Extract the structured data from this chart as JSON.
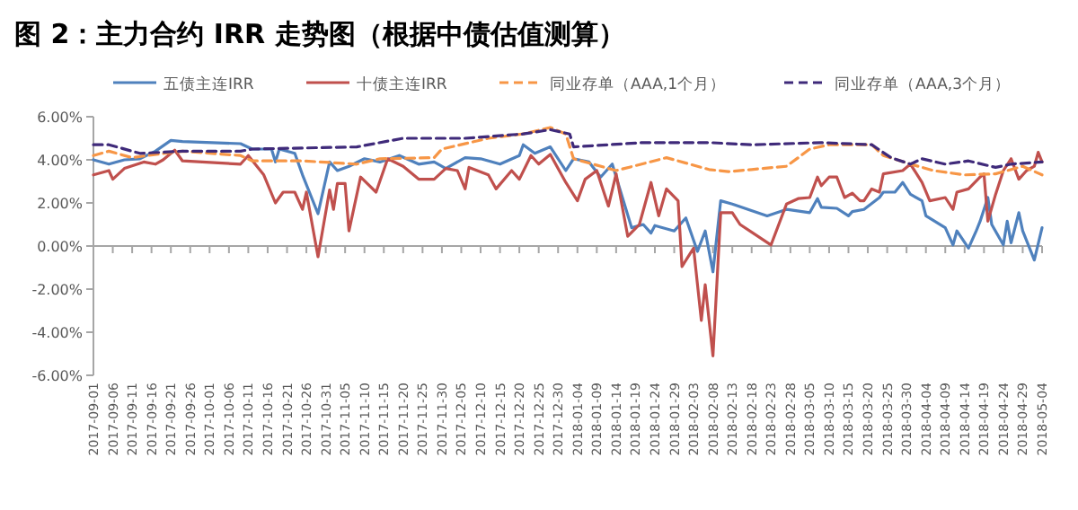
{
  "chart_data": {
    "type": "line",
    "title": "图 2：主力合约 IRR 走势图（根据中债估值测算）",
    "legend": "top",
    "xlim": [
      "2017-09-01",
      "2018-05-04"
    ],
    "xticks": [
      "2017-09-01",
      "2017-09-06",
      "2017-09-11",
      "2017-09-16",
      "2017-09-21",
      "2017-09-26",
      "2017-10-01",
      "2017-10-06",
      "2017-10-11",
      "2017-10-16",
      "2017-10-21",
      "2017-10-26",
      "2017-10-31",
      "2017-11-05",
      "2017-11-10",
      "2017-11-15",
      "2017-11-20",
      "2017-11-25",
      "2017-11-30",
      "2017-12-05",
      "2017-12-10",
      "2017-12-15",
      "2017-12-20",
      "2017-12-25",
      "2017-12-30",
      "2018-01-04",
      "2018-01-09",
      "2018-01-14",
      "2018-01-19",
      "2018-01-24",
      "2018-01-29",
      "2018-02-03",
      "2018-02-08",
      "2018-02-13",
      "2018-02-18",
      "2018-02-23",
      "2018-02-28",
      "2018-03-05",
      "2018-03-10",
      "2018-03-15",
      "2018-03-20",
      "2018-03-25",
      "2018-03-30",
      "2018-04-04",
      "2018-04-09",
      "2018-04-14",
      "2018-04-19",
      "2018-04-24",
      "2018-04-29",
      "2018-05-04"
    ],
    "ylim": [
      -6,
      6
    ],
    "yticks": [
      {
        "value": -6,
        "label": "-6.00%"
      },
      {
        "value": -4,
        "label": "-4.00%"
      },
      {
        "value": -2,
        "label": "-2.00%"
      },
      {
        "value": 0,
        "label": "0.00%"
      },
      {
        "value": 2,
        "label": "2.00%"
      },
      {
        "value": 4,
        "label": "4.00%"
      },
      {
        "value": 6,
        "label": "6.00%"
      }
    ],
    "series": [
      {
        "name": "五债主连IRR",
        "color": "#4f81bd",
        "line_style": "solid",
        "x": [
          "2017-09-01",
          "2017-09-05",
          "2017-09-09",
          "2017-09-13",
          "2017-09-17",
          "2017-09-21",
          "2017-09-24",
          "2017-10-09",
          "2017-10-12",
          "2017-10-17",
          "2017-10-18",
          "2017-10-19",
          "2017-10-23",
          "2017-10-25",
          "2017-10-29",
          "2017-11-01",
          "2017-11-03",
          "2017-11-06",
          "2017-11-10",
          "2017-11-14",
          "2017-11-19",
          "2017-11-24",
          "2017-11-28",
          "2017-12-01",
          "2017-12-06",
          "2017-12-10",
          "2017-12-15",
          "2017-12-20",
          "2017-12-21",
          "2017-12-24",
          "2017-12-28",
          "2018-01-01",
          "2018-01-03",
          "2018-01-07",
          "2018-01-10",
          "2018-01-13",
          "2018-01-18",
          "2018-01-21",
          "2018-01-23",
          "2018-01-24",
          "2018-01-29",
          "2018-02-01",
          "2018-02-04",
          "2018-02-06",
          "2018-02-08",
          "2018-02-10",
          "2018-02-13",
          "2018-02-22",
          "2018-02-27",
          "2018-03-05",
          "2018-03-07",
          "2018-03-08",
          "2018-03-12",
          "2018-03-15",
          "2018-03-16",
          "2018-03-19",
          "2018-03-23",
          "2018-03-24",
          "2018-03-27",
          "2018-03-29",
          "2018-03-31",
          "2018-04-03",
          "2018-04-04",
          "2018-04-09",
          "2018-04-11",
          "2018-04-12",
          "2018-04-15",
          "2018-04-17",
          "2018-04-18",
          "2018-04-20",
          "2018-04-21",
          "2018-04-24",
          "2018-04-25",
          "2018-04-26",
          "2018-04-28",
          "2018-04-29",
          "2018-05-02",
          "2018-05-04"
        ],
        "values": [
          4.0,
          3.8,
          4.0,
          4.05,
          4.4,
          4.9,
          4.85,
          4.75,
          4.5,
          4.5,
          3.9,
          4.5,
          4.3,
          3.3,
          1.5,
          3.9,
          3.5,
          3.7,
          4.05,
          3.9,
          4.2,
          3.8,
          3.9,
          3.6,
          4.1,
          4.05,
          3.8,
          4.2,
          4.7,
          4.3,
          4.6,
          3.5,
          4.05,
          3.9,
          3.2,
          3.8,
          0.85,
          1.0,
          0.6,
          0.95,
          0.7,
          1.3,
          -0.25,
          0.7,
          -1.2,
          2.1,
          1.95,
          1.4,
          1.7,
          1.55,
          2.2,
          1.8,
          1.75,
          1.4,
          1.6,
          1.7,
          2.25,
          2.5,
          2.5,
          2.95,
          2.4,
          2.1,
          1.4,
          0.85,
          0.05,
          0.7,
          -0.1,
          0.7,
          1.15,
          2.25,
          1.0,
          0.05,
          1.15,
          0.15,
          1.55,
          0.7,
          -0.65,
          0.85
        ]
      },
      {
        "name": "十债主连IRR",
        "color": "#c0504d",
        "line_style": "solid",
        "x": [
          "2017-09-01",
          "2017-09-05",
          "2017-09-06",
          "2017-09-09",
          "2017-09-14",
          "2017-09-17",
          "2017-09-19",
          "2017-09-22",
          "2017-09-24",
          "2017-10-09",
          "2017-10-11",
          "2017-10-15",
          "2017-10-18",
          "2017-10-20",
          "2017-10-23",
          "2017-10-25",
          "2017-10-26",
          "2017-10-29",
          "2017-11-01",
          "2017-11-02",
          "2017-11-03",
          "2017-11-05",
          "2017-11-06",
          "2017-11-09",
          "2017-11-13",
          "2017-11-16",
          "2017-11-20",
          "2017-11-24",
          "2017-11-28",
          "2017-12-01",
          "2017-12-04",
          "2017-12-06",
          "2017-12-07",
          "2017-12-12",
          "2017-12-14",
          "2017-12-18",
          "2017-12-20",
          "2017-12-23",
          "2017-12-25",
          "2017-12-28",
          "2018-01-01",
          "2018-01-04",
          "2018-01-06",
          "2018-01-09",
          "2018-01-12",
          "2018-01-14",
          "2018-01-17",
          "2018-01-20",
          "2018-01-23",
          "2018-01-25",
          "2018-01-27",
          "2018-01-30",
          "2018-01-31",
          "2018-02-03",
          "2018-02-05",
          "2018-02-06",
          "2018-02-08",
          "2018-02-10",
          "2018-02-13",
          "2018-02-15",
          "2018-02-23",
          "2018-02-27",
          "2018-03-02",
          "2018-03-05",
          "2018-03-07",
          "2018-03-08",
          "2018-03-10",
          "2018-03-12",
          "2018-03-14",
          "2018-03-16",
          "2018-03-18",
          "2018-03-19",
          "2018-03-21",
          "2018-03-23",
          "2018-03-24",
          "2018-03-29",
          "2018-03-31",
          "2018-04-03",
          "2018-04-05",
          "2018-04-09",
          "2018-04-11",
          "2018-04-12",
          "2018-04-15",
          "2018-04-18",
          "2018-04-19",
          "2018-04-20",
          "2018-04-22",
          "2018-04-24",
          "2018-04-26",
          "2018-04-28",
          "2018-04-30",
          "2018-05-02",
          "2018-05-03",
          "2018-05-04"
        ],
        "values": [
          3.3,
          3.5,
          3.1,
          3.6,
          3.9,
          3.8,
          4.0,
          4.45,
          3.95,
          3.8,
          4.2,
          3.3,
          2.0,
          2.5,
          2.5,
          1.7,
          2.5,
          -0.5,
          2.6,
          1.7,
          2.9,
          2.9,
          0.7,
          3.2,
          2.5,
          4.05,
          3.7,
          3.1,
          3.1,
          3.6,
          3.5,
          2.65,
          3.65,
          3.3,
          2.65,
          3.5,
          3.1,
          4.2,
          3.8,
          4.25,
          2.95,
          2.1,
          3.1,
          3.5,
          1.85,
          3.35,
          0.45,
          1.0,
          2.95,
          1.4,
          2.65,
          2.1,
          -0.95,
          -0.1,
          -3.45,
          -1.8,
          -5.1,
          1.55,
          1.55,
          1.0,
          0.05,
          1.95,
          2.2,
          2.25,
          3.2,
          2.8,
          3.2,
          3.2,
          2.25,
          2.45,
          2.1,
          2.1,
          2.65,
          2.5,
          3.35,
          3.5,
          3.8,
          2.95,
          2.1,
          2.25,
          1.7,
          2.5,
          2.65,
          3.2,
          3.35,
          1.15,
          2.4,
          3.5,
          4.05,
          3.1,
          3.5,
          3.7,
          4.35,
          3.9
        ]
      },
      {
        "name": "同业存单（AAA,1个月）",
        "color": "#f79646",
        "line_style": "dashed",
        "x": [
          "2017-09-01",
          "2017-09-05",
          "2017-09-11",
          "2017-09-15",
          "2017-09-24",
          "2017-10-09",
          "2017-10-12",
          "2017-10-25",
          "2017-11-08",
          "2017-11-14",
          "2017-11-28",
          "2017-11-30",
          "2017-12-12",
          "2017-12-21",
          "2017-12-28",
          "2018-01-01",
          "2018-01-03",
          "2018-01-14",
          "2018-01-27",
          "2018-02-07",
          "2018-02-12",
          "2018-02-18",
          "2018-02-27",
          "2018-03-05",
          "2018-03-10",
          "2018-03-21",
          "2018-03-24",
          "2018-03-31",
          "2018-04-06",
          "2018-04-14",
          "2018-04-22",
          "2018-04-29",
          "2018-05-04"
        ],
        "values": [
          4.2,
          4.4,
          4.1,
          4.2,
          4.4,
          4.2,
          3.95,
          3.95,
          3.8,
          4.05,
          4.1,
          4.5,
          5.0,
          5.2,
          5.5,
          5.2,
          4.05,
          3.5,
          4.1,
          3.55,
          3.45,
          3.55,
          3.7,
          4.5,
          4.7,
          4.7,
          4.2,
          3.8,
          3.5,
          3.3,
          3.35,
          3.7,
          3.3
        ]
      },
      {
        "name": "同业存单（AAA,3个月）",
        "color": "#3f2a7a",
        "line_style": "dashed",
        "x": [
          "2017-09-01",
          "2017-09-05",
          "2017-09-13",
          "2017-09-24",
          "2017-10-09",
          "2017-10-12",
          "2017-11-08",
          "2017-11-20",
          "2017-12-06",
          "2017-12-21",
          "2017-12-28",
          "2018-01-02",
          "2018-01-03",
          "2018-01-21",
          "2018-02-07",
          "2018-02-18",
          "2018-03-08",
          "2018-03-21",
          "2018-03-26",
          "2018-03-31",
          "2018-04-03",
          "2018-04-09",
          "2018-04-15",
          "2018-04-22",
          "2018-04-26",
          "2018-05-04"
        ],
        "values": [
          4.7,
          4.7,
          4.3,
          4.4,
          4.4,
          4.5,
          4.6,
          5.0,
          5.0,
          5.2,
          5.4,
          5.2,
          4.6,
          4.8,
          4.8,
          4.7,
          4.8,
          4.7,
          4.1,
          3.8,
          4.05,
          3.8,
          3.95,
          3.65,
          3.8,
          3.9
        ]
      }
    ]
  }
}
